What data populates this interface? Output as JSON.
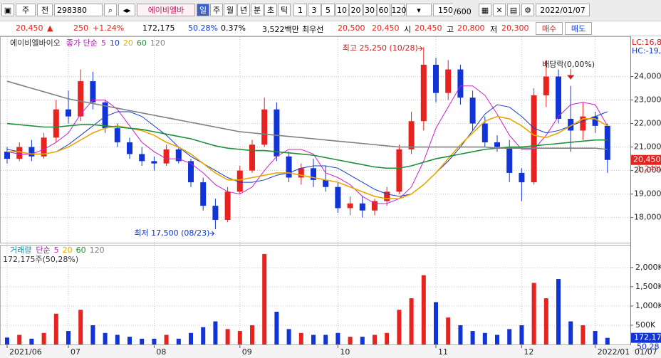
{
  "toolbar": {
    "market": "주",
    "prev": "전",
    "code": "298380",
    "name": "에이비엘바",
    "periods": [
      "일",
      "주",
      "월",
      "년",
      "분",
      "초",
      "틱"
    ],
    "minutes": [
      "1",
      "3",
      "5",
      "10",
      "20",
      "30",
      "60",
      "120"
    ],
    "count": "150",
    "max": "/600",
    "date": "2022/01/07"
  },
  "quote": {
    "price": "20,450",
    "arrow": "▲",
    "change": "250",
    "rate": "+1.24%",
    "volume": "172,175",
    "vol_ratio": "50.28%",
    "turnover": "0.37%",
    "amount": "3,522백만",
    "best_label": "최우선",
    "ask": "20,500",
    "bid": "20,450",
    "open_label": "시",
    "open": "20,450",
    "high_label": "고",
    "high": "20,800",
    "low_label": "저",
    "low": "20,300",
    "buy": "매수",
    "sell": "매도"
  },
  "chart_data": [
    {
      "type": "candlestick",
      "name": "에이비엘바이오",
      "ma_label": "종가 단순",
      "up_color": "#e8221e",
      "down_color": "#1034d8",
      "open": [
        20800,
        20500,
        21000,
        20600,
        21400,
        22600,
        22300,
        23800,
        22900,
        21800,
        21200,
        20700,
        20400,
        20300,
        20900,
        20400,
        19500,
        18500,
        17900,
        19100,
        20000,
        21100,
        22600,
        20600,
        19700,
        20100,
        19600,
        19300,
        18400,
        18600,
        18300,
        18700,
        19100,
        20900,
        22100,
        24500,
        23300,
        24300,
        23100,
        22000,
        21200,
        21000,
        19900,
        19500,
        23200,
        24000,
        22200,
        21700,
        22300,
        21900
      ],
      "high": [
        21000,
        21200,
        21300,
        21600,
        23000,
        23400,
        24300,
        24200,
        23000,
        22000,
        21400,
        21000,
        20600,
        21100,
        21000,
        20500,
        19700,
        18800,
        19300,
        20200,
        21300,
        23100,
        22900,
        20800,
        20300,
        20500,
        20200,
        19500,
        18900,
        18900,
        18800,
        19300,
        21100,
        22500,
        25250,
        24800,
        24700,
        24500,
        23400,
        22300,
        21500,
        21300,
        20100,
        23500,
        24700,
        24300,
        23600,
        22900,
        22500,
        22000
      ],
      "low": [
        20300,
        20400,
        20400,
        20500,
        21200,
        22000,
        22100,
        22600,
        21600,
        21000,
        20500,
        20200,
        20000,
        20200,
        20300,
        19300,
        18300,
        17500,
        17800,
        19000,
        19900,
        21000,
        20400,
        19500,
        19400,
        19300,
        19100,
        18200,
        18100,
        18000,
        18100,
        18500,
        19000,
        20700,
        21700,
        22900,
        23000,
        22800,
        21700,
        21000,
        20800,
        19500,
        18700,
        19400,
        22700,
        22000,
        20800,
        21300,
        21600,
        19900
      ],
      "close": [
        20500,
        21000,
        20600,
        21400,
        22600,
        22300,
        23800,
        22900,
        21800,
        21200,
        20700,
        20400,
        20300,
        20900,
        20400,
        19500,
        18500,
        17900,
        19100,
        20000,
        21100,
        22600,
        20600,
        19700,
        20100,
        19600,
        19300,
        18400,
        18600,
        18300,
        18700,
        19100,
        20900,
        22100,
        24500,
        23300,
        24300,
        23100,
        22000,
        21200,
        21000,
        19900,
        19500,
        23200,
        24000,
        22200,
        21700,
        22300,
        21900,
        20450
      ],
      "series": [
        {
          "name": "5",
          "color": "#d020d0",
          "values": [
            20800,
            20700,
            20700,
            20900,
            21200,
            21600,
            22400,
            23000,
            23000,
            22600,
            21900,
            21200,
            20800,
            20500,
            20500,
            20300,
            19900,
            19400,
            19100,
            19000,
            19300,
            20000,
            20600,
            20900,
            20900,
            20700,
            19900,
            19700,
            19400,
            18900,
            18600,
            18600,
            18800,
            19300,
            20400,
            21800,
            22700,
            23600,
            23600,
            23200,
            22400,
            21500,
            20900,
            20900,
            21500,
            22300,
            22800,
            22900,
            22800,
            21900
          ]
        },
        {
          "name": "10",
          "color": "#1a3ad0",
          "values": [
            20900,
            20800,
            20700,
            20700,
            20800,
            21100,
            21500,
            21900,
            22300,
            22500,
            22500,
            22300,
            21900,
            21500,
            21000,
            20600,
            20300,
            20000,
            19700,
            19500,
            19500,
            19600,
            19800,
            19900,
            20100,
            20200,
            20200,
            20100,
            19800,
            19500,
            19200,
            19000,
            18900,
            19000,
            19400,
            19900,
            20400,
            21000,
            21700,
            22400,
            22800,
            22700,
            22300,
            21800,
            21600,
            21700,
            21900,
            22100,
            22300,
            22500
          ]
        },
        {
          "name": "20",
          "color": "#e8a800",
          "values": [
            20800,
            20800,
            20700,
            20700,
            20800,
            21000,
            21300,
            21600,
            21800,
            21900,
            21800,
            21700,
            21500,
            21200,
            21000,
            20700,
            20300,
            19900,
            19600,
            19600,
            19700,
            19800,
            19900,
            19900,
            19800,
            19700,
            19600,
            19500,
            19300,
            19100,
            18900,
            18800,
            18800,
            19000,
            19400,
            19900,
            20500,
            21100,
            21600,
            22100,
            22300,
            22200,
            21900,
            21500,
            21400,
            21600,
            21900,
            22200,
            22200,
            21900
          ]
        },
        {
          "name": "60",
          "color": "#1f8f3a",
          "values": [
            22000,
            21950,
            21900,
            21850,
            21850,
            21900,
            21950,
            21950,
            21900,
            21850,
            21800,
            21750,
            21650,
            21550,
            21450,
            21350,
            21200,
            21050,
            20950,
            20900,
            20850,
            20850,
            20800,
            20750,
            20700,
            20650,
            20550,
            20450,
            20350,
            20250,
            20150,
            20100,
            20100,
            20200,
            20350,
            20500,
            20600,
            20700,
            20800,
            20900,
            20950,
            21000,
            21000,
            21050,
            21100,
            21150,
            21200,
            21250,
            21300,
            21300
          ]
        },
        {
          "name": "120",
          "color": "#808080",
          "values": [
            23800,
            23650,
            23500,
            23350,
            23200,
            23050,
            22950,
            22850,
            22750,
            22650,
            22550,
            22450,
            22350,
            22250,
            22150,
            22050,
            21950,
            21850,
            21750,
            21650,
            21600,
            21550,
            21500,
            21450,
            21400,
            21350,
            21300,
            21250,
            21200,
            21150,
            21100,
            21050,
            21000,
            21000,
            21000,
            21000,
            21000,
            21000,
            21000,
            21000,
            20950,
            20950,
            20950,
            20950,
            20950,
            20950,
            20950,
            20950,
            20950,
            20900
          ]
        }
      ],
      "ylim": [
        16960,
        25680
      ],
      "yticks": [
        {
          "value": 18000,
          "label": "18,000"
        },
        {
          "value": 19000,
          "label": "19,000"
        },
        {
          "value": 20000,
          "label": "20,000"
        },
        {
          "value": 21000,
          "label": "21,000"
        },
        {
          "value": 22000,
          "label": "22,000"
        },
        {
          "value": 23000,
          "label": "23,000"
        },
        {
          "value": 24000,
          "label": "24,000"
        }
      ],
      "annotations": [
        "최고 25,250 (10/28)",
        "최저 17,500 (08/23)",
        "배당락(0,00%)"
      ],
      "lc": "LC:16,8",
      "hc": "HC:-19,",
      "last_label": "20,450",
      "last_value": 20450,
      "last_rate": "1.24%"
    },
    {
      "type": "bar",
      "name": "거래량",
      "ma_label": "단순",
      "ma_names": [
        {
          "name": "5",
          "color": "#d020d0"
        },
        {
          "name": "20",
          "color": "#e8a800"
        },
        {
          "name": "60",
          "color": "#1f8f3a"
        },
        {
          "name": "120",
          "color": "#808080"
        }
      ],
      "summary": "172,175주(50,28%)",
      "values": [
        180000,
        250000,
        150000,
        300000,
        800000,
        350000,
        900000,
        500000,
        300000,
        250000,
        200000,
        150000,
        150000,
        250000,
        150000,
        300000,
        450000,
        600000,
        400000,
        350000,
        500000,
        2350000,
        850000,
        400000,
        300000,
        250000,
        250000,
        300000,
        200000,
        200000,
        250000,
        300000,
        900000,
        1200000,
        1800000,
        1100000,
        700000,
        500000,
        350000,
        300000,
        250000,
        400000,
        500000,
        1600000,
        1200000,
        1700000,
        600000,
        500000,
        350000,
        172175
      ],
      "ylim": [
        0,
        2570000
      ],
      "yticks": [
        {
          "value": 500000,
          "label": "500K"
        },
        {
          "value": 1000000,
          "label": "1,000K"
        },
        {
          "value": 1500000,
          "label": "1,500K"
        },
        {
          "value": 2000000,
          "label": "2,000K"
        }
      ],
      "last_label": "172,17",
      "ratio_label": "50,28",
      "xticks": [
        {
          "value": 0,
          "label": "2021/06"
        },
        {
          "value": 5,
          "label": "07"
        },
        {
          "value": 12,
          "label": "08"
        },
        {
          "value": 19,
          "label": "09"
        },
        {
          "value": 27,
          "label": "10"
        },
        {
          "value": 35,
          "label": "11"
        },
        {
          "value": 42,
          "label": "12"
        },
        {
          "value": 48,
          "label": "2022/01"
        }
      ],
      "end_label": "01/07"
    }
  ]
}
